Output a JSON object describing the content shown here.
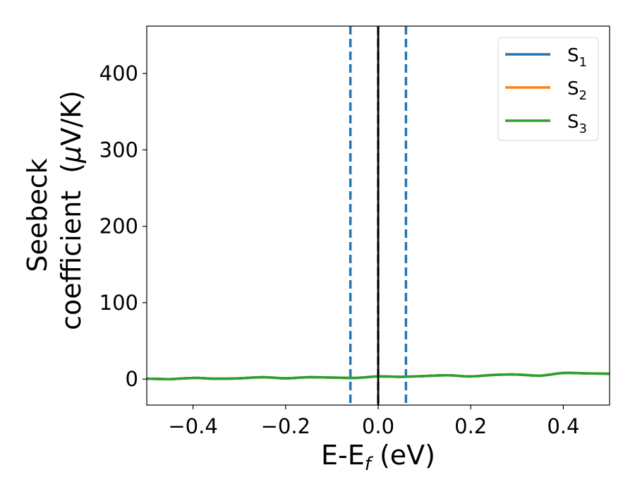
{
  "chart_data": {
    "type": "line",
    "xlim": [
      -0.5,
      0.5
    ],
    "ylim": [
      -34,
      462
    ],
    "x_ticks": [
      -0.4,
      -0.2,
      0.0,
      0.2,
      0.4
    ],
    "x_tick_labels": [
      "−0.4",
      "−0.2",
      "0.0",
      "0.2",
      "0.4"
    ],
    "y_ticks": [
      0,
      100,
      200,
      300,
      400
    ],
    "y_tick_labels": [
      "0",
      "100",
      "200",
      "300",
      "400"
    ],
    "xlabel": {
      "main": "E-E",
      "sub": "f",
      "tail": " (eV)"
    },
    "ylabel": {
      "line1": "Seebeck",
      "line2_pre": "coefficient  (",
      "mu": "μ",
      "line2_post": "V/K)"
    },
    "grid": false,
    "legend_position": "top-right",
    "series": [
      {
        "name": "S",
        "sub": "1",
        "color": "#1f77b4",
        "x": [
          -0.5,
          -0.45,
          -0.4,
          -0.35,
          -0.3,
          -0.25,
          -0.2,
          -0.15,
          -0.1,
          -0.05,
          0.0,
          0.05,
          0.1,
          0.15,
          0.2,
          0.25,
          0.3,
          0.35,
          0.4,
          0.45,
          0.5
        ],
        "y": [
          0.5,
          0,
          1.5,
          0.5,
          1,
          2.5,
          1,
          2.5,
          2,
          1.5,
          3.5,
          3,
          4,
          5,
          3.5,
          5.5,
          6,
          4.5,
          8,
          7.5,
          7
        ]
      },
      {
        "name": "S",
        "sub": "2",
        "color": "#ff7f0e",
        "x": [
          -0.5,
          -0.45,
          -0.4,
          -0.35,
          -0.3,
          -0.25,
          -0.2,
          -0.15,
          -0.1,
          -0.05,
          0.0,
          0.05,
          0.1,
          0.15,
          0.2,
          0.25,
          0.3,
          0.35,
          0.4,
          0.45,
          0.5
        ],
        "y": [
          0.5,
          0,
          1.5,
          0.5,
          1,
          2.5,
          1,
          2.5,
          2,
          1.5,
          3.5,
          3,
          4,
          5,
          3.5,
          5.5,
          6,
          4.5,
          8,
          7.5,
          7
        ]
      },
      {
        "name": "S",
        "sub": "3",
        "color": "#2ca02c",
        "x": [
          -0.5,
          -0.45,
          -0.4,
          -0.35,
          -0.3,
          -0.25,
          -0.2,
          -0.15,
          -0.1,
          -0.05,
          0.0,
          0.05,
          0.1,
          0.15,
          0.2,
          0.25,
          0.3,
          0.35,
          0.4,
          0.45,
          0.5
        ],
        "y": [
          0.5,
          0,
          1.5,
          0.5,
          1,
          2.5,
          1,
          2.5,
          2,
          1.5,
          3.5,
          3,
          4,
          5,
          3.5,
          5.5,
          6,
          4.5,
          8,
          7.5,
          7
        ]
      }
    ],
    "vertical_lines": [
      {
        "x": -0.06,
        "style": "dashed",
        "color": "#1f77b4"
      },
      {
        "x": 0.0,
        "style": "dashed",
        "color": "#1f77b4"
      },
      {
        "x": 0.06,
        "style": "dashed",
        "color": "#1f77b4"
      },
      {
        "x": 0.0,
        "style": "solid",
        "color": "#000000"
      }
    ]
  }
}
